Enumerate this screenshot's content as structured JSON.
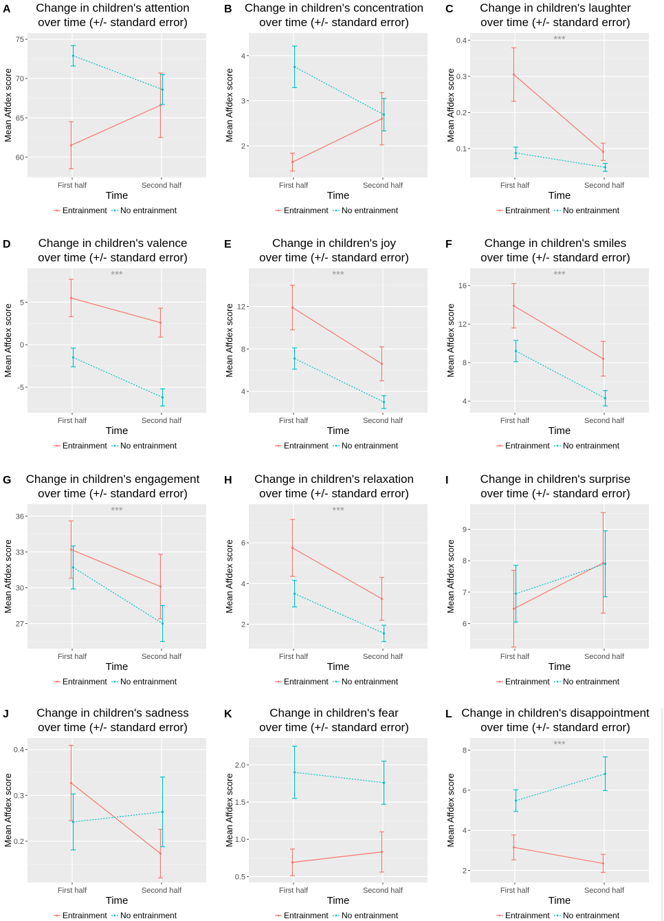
{
  "colors": {
    "entrainment": "#f8766d",
    "no_entrainment": "#00bfc4",
    "panel_bg": "#ebebeb",
    "grid": "#ffffff",
    "significance": "#999999"
  },
  "chart_data": [
    {
      "type": "line",
      "panel_label": "A",
      "title": "Change in children's attention\nover time (+/- standard error)",
      "xlabel": "Time",
      "ylabel": "Mean Affdex score",
      "categories": [
        "First half",
        "Second half"
      ],
      "yticks": [
        60,
        65,
        70,
        75
      ],
      "ylim": [
        57.4,
        75.8
      ],
      "significance": "",
      "series": [
        {
          "name": "Entrainment",
          "values": [
            61.5,
            66.6
          ],
          "se": [
            3.0,
            4.1
          ]
        },
        {
          "name": "No entrainment",
          "values": [
            72.9,
            68.6
          ],
          "se": [
            1.3,
            1.9
          ]
        }
      ],
      "legend": [
        "Entrainment",
        "No entrainment"
      ]
    },
    {
      "type": "line",
      "panel_label": "B",
      "title": "Change in children's concentration\nover time (+/- standard error)",
      "xlabel": "Time",
      "ylabel": "Mean Affdex score",
      "categories": [
        "First half",
        "Second half"
      ],
      "yticks": [
        2,
        3,
        4
      ],
      "ylim": [
        1.3,
        4.5
      ],
      "significance": "",
      "series": [
        {
          "name": "Entrainment",
          "values": [
            1.64,
            2.6
          ],
          "se": [
            0.2,
            0.58
          ]
        },
        {
          "name": "No entrainment",
          "values": [
            3.75,
            2.69
          ],
          "se": [
            0.46,
            0.36
          ]
        }
      ],
      "legend": [
        "Entrainment",
        "No entrainment"
      ]
    },
    {
      "type": "line",
      "panel_label": "C",
      "title": "Change in children's laughter\nover time (+/- standard error)",
      "xlabel": "Time",
      "ylabel": "Mean Affdex score",
      "categories": [
        "First half",
        "Second half"
      ],
      "yticks": [
        0.1,
        0.2,
        0.3,
        0.4
      ],
      "yticklabels": [
        "0.1",
        "0.2",
        "0.3",
        "0.4"
      ],
      "ylim": [
        0.02,
        0.42
      ],
      "significance": "***",
      "series": [
        {
          "name": "Entrainment",
          "values": [
            0.305,
            0.091
          ],
          "se": [
            0.074,
            0.024
          ]
        },
        {
          "name": "No entrainment",
          "values": [
            0.088,
            0.048
          ],
          "se": [
            0.016,
            0.011
          ]
        }
      ],
      "legend": [
        "Entrainment",
        "No entrainment"
      ]
    },
    {
      "type": "line",
      "panel_label": "D",
      "title": "Change in children's valence\nover time (+/- standard error)",
      "xlabel": "Time",
      "ylabel": "Mean Affdex score",
      "categories": [
        "First half",
        "Second half"
      ],
      "yticks": [
        -5,
        0,
        5
      ],
      "yticklabels": [
        "-5",
        "0",
        "5"
      ],
      "ylim": [
        -8,
        9
      ],
      "significance": "***",
      "series": [
        {
          "name": "Entrainment",
          "values": [
            5.5,
            2.6
          ],
          "se": [
            2.2,
            1.7
          ]
        },
        {
          "name": "No entrainment",
          "values": [
            -1.5,
            -6.2
          ],
          "se": [
            1.1,
            1.0
          ]
        }
      ],
      "legend": [
        "Entrainment",
        "No entrainment"
      ]
    },
    {
      "type": "line",
      "panel_label": "E",
      "title": "Change in children's joy\nover time (+/- standard error)",
      "xlabel": "Time",
      "ylabel": "Mean Affdex score",
      "categories": [
        "First half",
        "Second half"
      ],
      "yticks": [
        4,
        8,
        12
      ],
      "ylim": [
        2.0,
        15.6
      ],
      "significance": "***",
      "series": [
        {
          "name": "Entrainment",
          "values": [
            11.9,
            6.6
          ],
          "se": [
            2.1,
            1.6
          ]
        },
        {
          "name": "No entrainment",
          "values": [
            7.1,
            3.0
          ],
          "se": [
            1.0,
            0.6
          ]
        }
      ],
      "legend": [
        "Entrainment",
        "No entrainment"
      ]
    },
    {
      "type": "line",
      "panel_label": "F",
      "title": "Change in children's smiles\nover time (+/- standard error)",
      "xlabel": "Time",
      "ylabel": "Mean Affdex score",
      "categories": [
        "First half",
        "Second half"
      ],
      "yticks": [
        4,
        8,
        12,
        16
      ],
      "ylim": [
        2.8,
        17.8
      ],
      "significance": "***",
      "series": [
        {
          "name": "Entrainment",
          "values": [
            13.9,
            8.4
          ],
          "se": [
            2.3,
            1.8
          ]
        },
        {
          "name": "No entrainment",
          "values": [
            9.2,
            4.3
          ],
          "se": [
            1.1,
            0.8
          ]
        }
      ],
      "legend": [
        "Entrainment",
        "No entrainment"
      ]
    },
    {
      "type": "line",
      "panel_label": "G",
      "title": "Change in children's engagement\nover time (+/- standard error)",
      "xlabel": "Time",
      "ylabel": "Mean Affdex score",
      "categories": [
        "First half",
        "Second half"
      ],
      "yticks": [
        27,
        30,
        33,
        36
      ],
      "ylim": [
        24.9,
        37.0
      ],
      "significance": "***",
      "series": [
        {
          "name": "Entrainment",
          "values": [
            33.2,
            30.1
          ],
          "se": [
            2.4,
            2.7
          ]
        },
        {
          "name": "No entrainment",
          "values": [
            31.7,
            27.0
          ],
          "se": [
            1.8,
            1.5
          ]
        }
      ],
      "legend": [
        "Entrainment",
        "No entrainment"
      ]
    },
    {
      "type": "line",
      "panel_label": "H",
      "title": "Change in children's relaxation\nover time (+/- standard error)",
      "xlabel": "Time",
      "ylabel": "Mean Affdex score",
      "categories": [
        "First half",
        "Second half"
      ],
      "yticks": [
        2,
        4,
        6
      ],
      "ylim": [
        0.8,
        7.9
      ],
      "significance": "***",
      "series": [
        {
          "name": "Entrainment",
          "values": [
            5.75,
            3.25
          ],
          "se": [
            1.4,
            1.05
          ]
        },
        {
          "name": "No entrainment",
          "values": [
            3.5,
            1.55
          ],
          "se": [
            0.65,
            0.4
          ]
        }
      ],
      "legend": [
        "Entrainment",
        "No entrainment"
      ]
    },
    {
      "type": "line",
      "panel_label": "I",
      "title": "Change in children's surprise\nover time (+/- standard error)",
      "xlabel": "Time",
      "ylabel": "Mean Affdex score",
      "categories": [
        "First half",
        "Second half"
      ],
      "yticks": [
        6,
        7,
        8,
        9
      ],
      "ylim": [
        5.2,
        9.8
      ],
      "significance": "",
      "series": [
        {
          "name": "Entrainment",
          "values": [
            6.47,
            7.93
          ],
          "se": [
            1.22,
            1.6
          ]
        },
        {
          "name": "No entrainment",
          "values": [
            6.95,
            7.9
          ],
          "se": [
            0.9,
            1.05
          ]
        }
      ],
      "legend": [
        "Entrainment",
        "No entrainment"
      ]
    },
    {
      "type": "line",
      "panel_label": "J",
      "title": "Change in children's sadness\nover time (+/- standard error)",
      "xlabel": "Time",
      "ylabel": "Mean Affdex score",
      "categories": [
        "First half",
        "Second half"
      ],
      "yticks": [
        0.2,
        0.3,
        0.4
      ],
      "yticklabels": [
        "0.2",
        "0.3",
        "0.4"
      ],
      "ylim": [
        0.11,
        0.425
      ],
      "significance": "",
      "series": [
        {
          "name": "Entrainment",
          "values": [
            0.327,
            0.173
          ],
          "se": [
            0.082,
            0.053
          ]
        },
        {
          "name": "No entrainment",
          "values": [
            0.242,
            0.264
          ],
          "se": [
            0.061,
            0.076
          ]
        }
      ],
      "legend": [
        "Entrainment",
        "No entrainment"
      ]
    },
    {
      "type": "line",
      "panel_label": "K",
      "title": "Change in children's fear\nover time (+/- standard error)",
      "xlabel": "Time",
      "ylabel": "Mean Affdex score",
      "categories": [
        "First half",
        "Second half"
      ],
      "yticks": [
        0.5,
        1.0,
        1.5,
        2.0
      ],
      "yticklabels": [
        "0.5",
        "1.0",
        "1.5",
        "2.0"
      ],
      "ylim": [
        0.42,
        2.36
      ],
      "significance": "",
      "series": [
        {
          "name": "Entrainment",
          "values": [
            0.69,
            0.83
          ],
          "se": [
            0.18,
            0.27
          ]
        },
        {
          "name": "No entrainment",
          "values": [
            1.9,
            1.76
          ],
          "se": [
            0.35,
            0.29
          ]
        }
      ],
      "legend": [
        "Entrainment",
        "No entrainment"
      ]
    },
    {
      "type": "line",
      "panel_label": "L",
      "title": "Change in children's disappointment\nover time (+/- standard error)",
      "xlabel": "Time",
      "ylabel": "Mean Affdex score",
      "categories": [
        "First half",
        "Second half"
      ],
      "yticks": [
        2,
        4,
        6,
        8
      ],
      "ylim": [
        1.4,
        8.6
      ],
      "significance": "***",
      "series": [
        {
          "name": "Entrainment",
          "values": [
            3.15,
            2.35
          ],
          "se": [
            0.62,
            0.45
          ]
        },
        {
          "name": "No entrainment",
          "values": [
            5.48,
            6.82
          ],
          "se": [
            0.54,
            0.84
          ]
        }
      ],
      "legend": [
        "Entrainment",
        "No entrainment"
      ]
    }
  ]
}
